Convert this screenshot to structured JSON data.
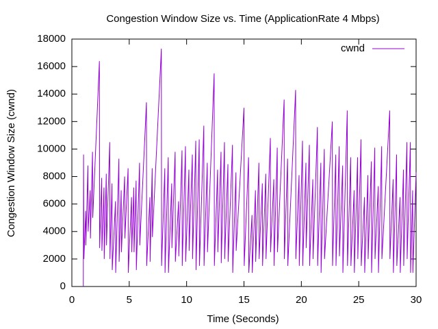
{
  "chart_data": {
    "type": "line",
    "title": "Congestion Window Size vs. Time (ApplicationRate 4 Mbps)",
    "x_label": "Time (Seconds)",
    "y_label": "Congestion Window Size (cwnd)",
    "xlim": [
      0,
      30
    ],
    "xticks": [
      0,
      5,
      10,
      15,
      20,
      25,
      30
    ],
    "ylim": [
      0,
      18000
    ],
    "yticks": [
      0,
      2000,
      4000,
      6000,
      8000,
      10000,
      12000,
      14000,
      16000,
      18000
    ],
    "grid": false,
    "legend": "top-right",
    "x": [
      1.0,
      1.02,
      1.05,
      1.2,
      1.22,
      1.4,
      1.42,
      1.6,
      1.62,
      1.8,
      1.82,
      2.4,
      2.42,
      2.6,
      2.62,
      2.8,
      2.82,
      3.0,
      3.02,
      3.3,
      3.32,
      3.5,
      3.52,
      3.8,
      3.82,
      4.1,
      4.12,
      4.3,
      4.32,
      4.6,
      4.62,
      4.9,
      4.92,
      5.2,
      5.22,
      5.4,
      5.42,
      5.6,
      5.62,
      5.9,
      5.92,
      6.5,
      6.52,
      6.8,
      6.82,
      7.0,
      7.02,
      7.8,
      7.82,
      8.1,
      8.12,
      8.4,
      8.42,
      8.7,
      8.72,
      9.0,
      9.02,
      9.3,
      9.32,
      9.6,
      9.62,
      9.9,
      9.92,
      10.2,
      10.22,
      10.5,
      10.52,
      10.8,
      10.82,
      11.1,
      11.12,
      11.5,
      11.52,
      11.8,
      11.82,
      12.4,
      12.42,
      12.7,
      12.72,
      13.0,
      13.02,
      13.3,
      13.32,
      13.6,
      13.62,
      14.0,
      14.02,
      14.3,
      14.32,
      15.0,
      15.02,
      15.4,
      15.42,
      15.7,
      15.72,
      16.0,
      16.02,
      16.3,
      16.32,
      16.6,
      16.62,
      16.9,
      16.92,
      17.3,
      17.32,
      17.6,
      17.62,
      17.9,
      17.92,
      18.5,
      18.52,
      18.8,
      18.82,
      19.5,
      19.52,
      19.8,
      19.82,
      20.1,
      20.12,
      20.4,
      20.42,
      20.7,
      20.72,
      21.0,
      21.02,
      21.4,
      21.42,
      21.7,
      21.72,
      22.0,
      22.02,
      22.7,
      22.72,
      23.0,
      23.02,
      23.3,
      23.32,
      23.6,
      23.62,
      24.0,
      24.02,
      24.3,
      24.32,
      24.6,
      24.62,
      24.9,
      24.92,
      25.2,
      25.22,
      25.5,
      25.52,
      25.8,
      25.82,
      26.1,
      26.12,
      26.4,
      26.42,
      26.7,
      26.72,
      27.0,
      27.02,
      27.7,
      27.72,
      28.0,
      28.02,
      28.3,
      28.32,
      28.6,
      28.62,
      28.9,
      28.92,
      29.2,
      29.22,
      29.5,
      29.52,
      29.7,
      29.72,
      30.0
    ],
    "series": [
      {
        "name": "cwnd",
        "color": "#9400d3",
        "values": [
          0,
          9600,
          2000,
          5500,
          3000,
          8800,
          4000,
          7000,
          3500,
          9800,
          5000,
          16400,
          2800,
          7900,
          2600,
          7200,
          2000,
          8200,
          3000,
          10500,
          2000,
          7500,
          1200,
          6200,
          1000,
          9300,
          1800,
          7000,
          2500,
          8000,
          3500,
          8600,
          1000,
          6500,
          2500,
          7200,
          2500,
          7700,
          1200,
          9000,
          3000,
          13400,
          1500,
          6500,
          1800,
          8600,
          3600,
          17300,
          1500,
          8600,
          1000,
          9400,
          1000,
          7500,
          2800,
          9800,
          1800,
          6200,
          2200,
          9900,
          1500,
          10200,
          1800,
          8500,
          2600,
          9600,
          2000,
          10600,
          1200,
          10700,
          1500,
          11700,
          1500,
          9000,
          2500,
          15500,
          1500,
          8500,
          2500,
          9800,
          1700,
          10500,
          2000,
          8900,
          1800,
          10300,
          1000,
          8300,
          2600,
          13000,
          1500,
          9400,
          1000,
          5200,
          1000,
          7000,
          1800,
          9000,
          2000,
          7500,
          1500,
          8200,
          2000,
          10800,
          2500,
          7800,
          1500,
          10100,
          2500,
          13600,
          2000,
          9300,
          1500,
          14300,
          2000,
          8100,
          1500,
          10600,
          1500,
          9000,
          2800,
          10300,
          1500,
          7800,
          2000,
          11600,
          1500,
          9000,
          1000,
          10000,
          2000,
          12000,
          1500,
          9600,
          1500,
          10200,
          2200,
          8800,
          1000,
          12800,
          1500,
          9400,
          1500,
          7000,
          1000,
          9400,
          2000,
          10700,
          1500,
          6500,
          1000,
          8100,
          2000,
          9100,
          1000,
          10100,
          2000,
          7300,
          1000,
          10200,
          2000,
          12800,
          2000,
          7800,
          1000,
          9600,
          1500,
          6500,
          1000,
          8500,
          1500,
          10500,
          2000,
          10500,
          1000,
          7000,
          1000,
          8300
        ]
      }
    ]
  }
}
